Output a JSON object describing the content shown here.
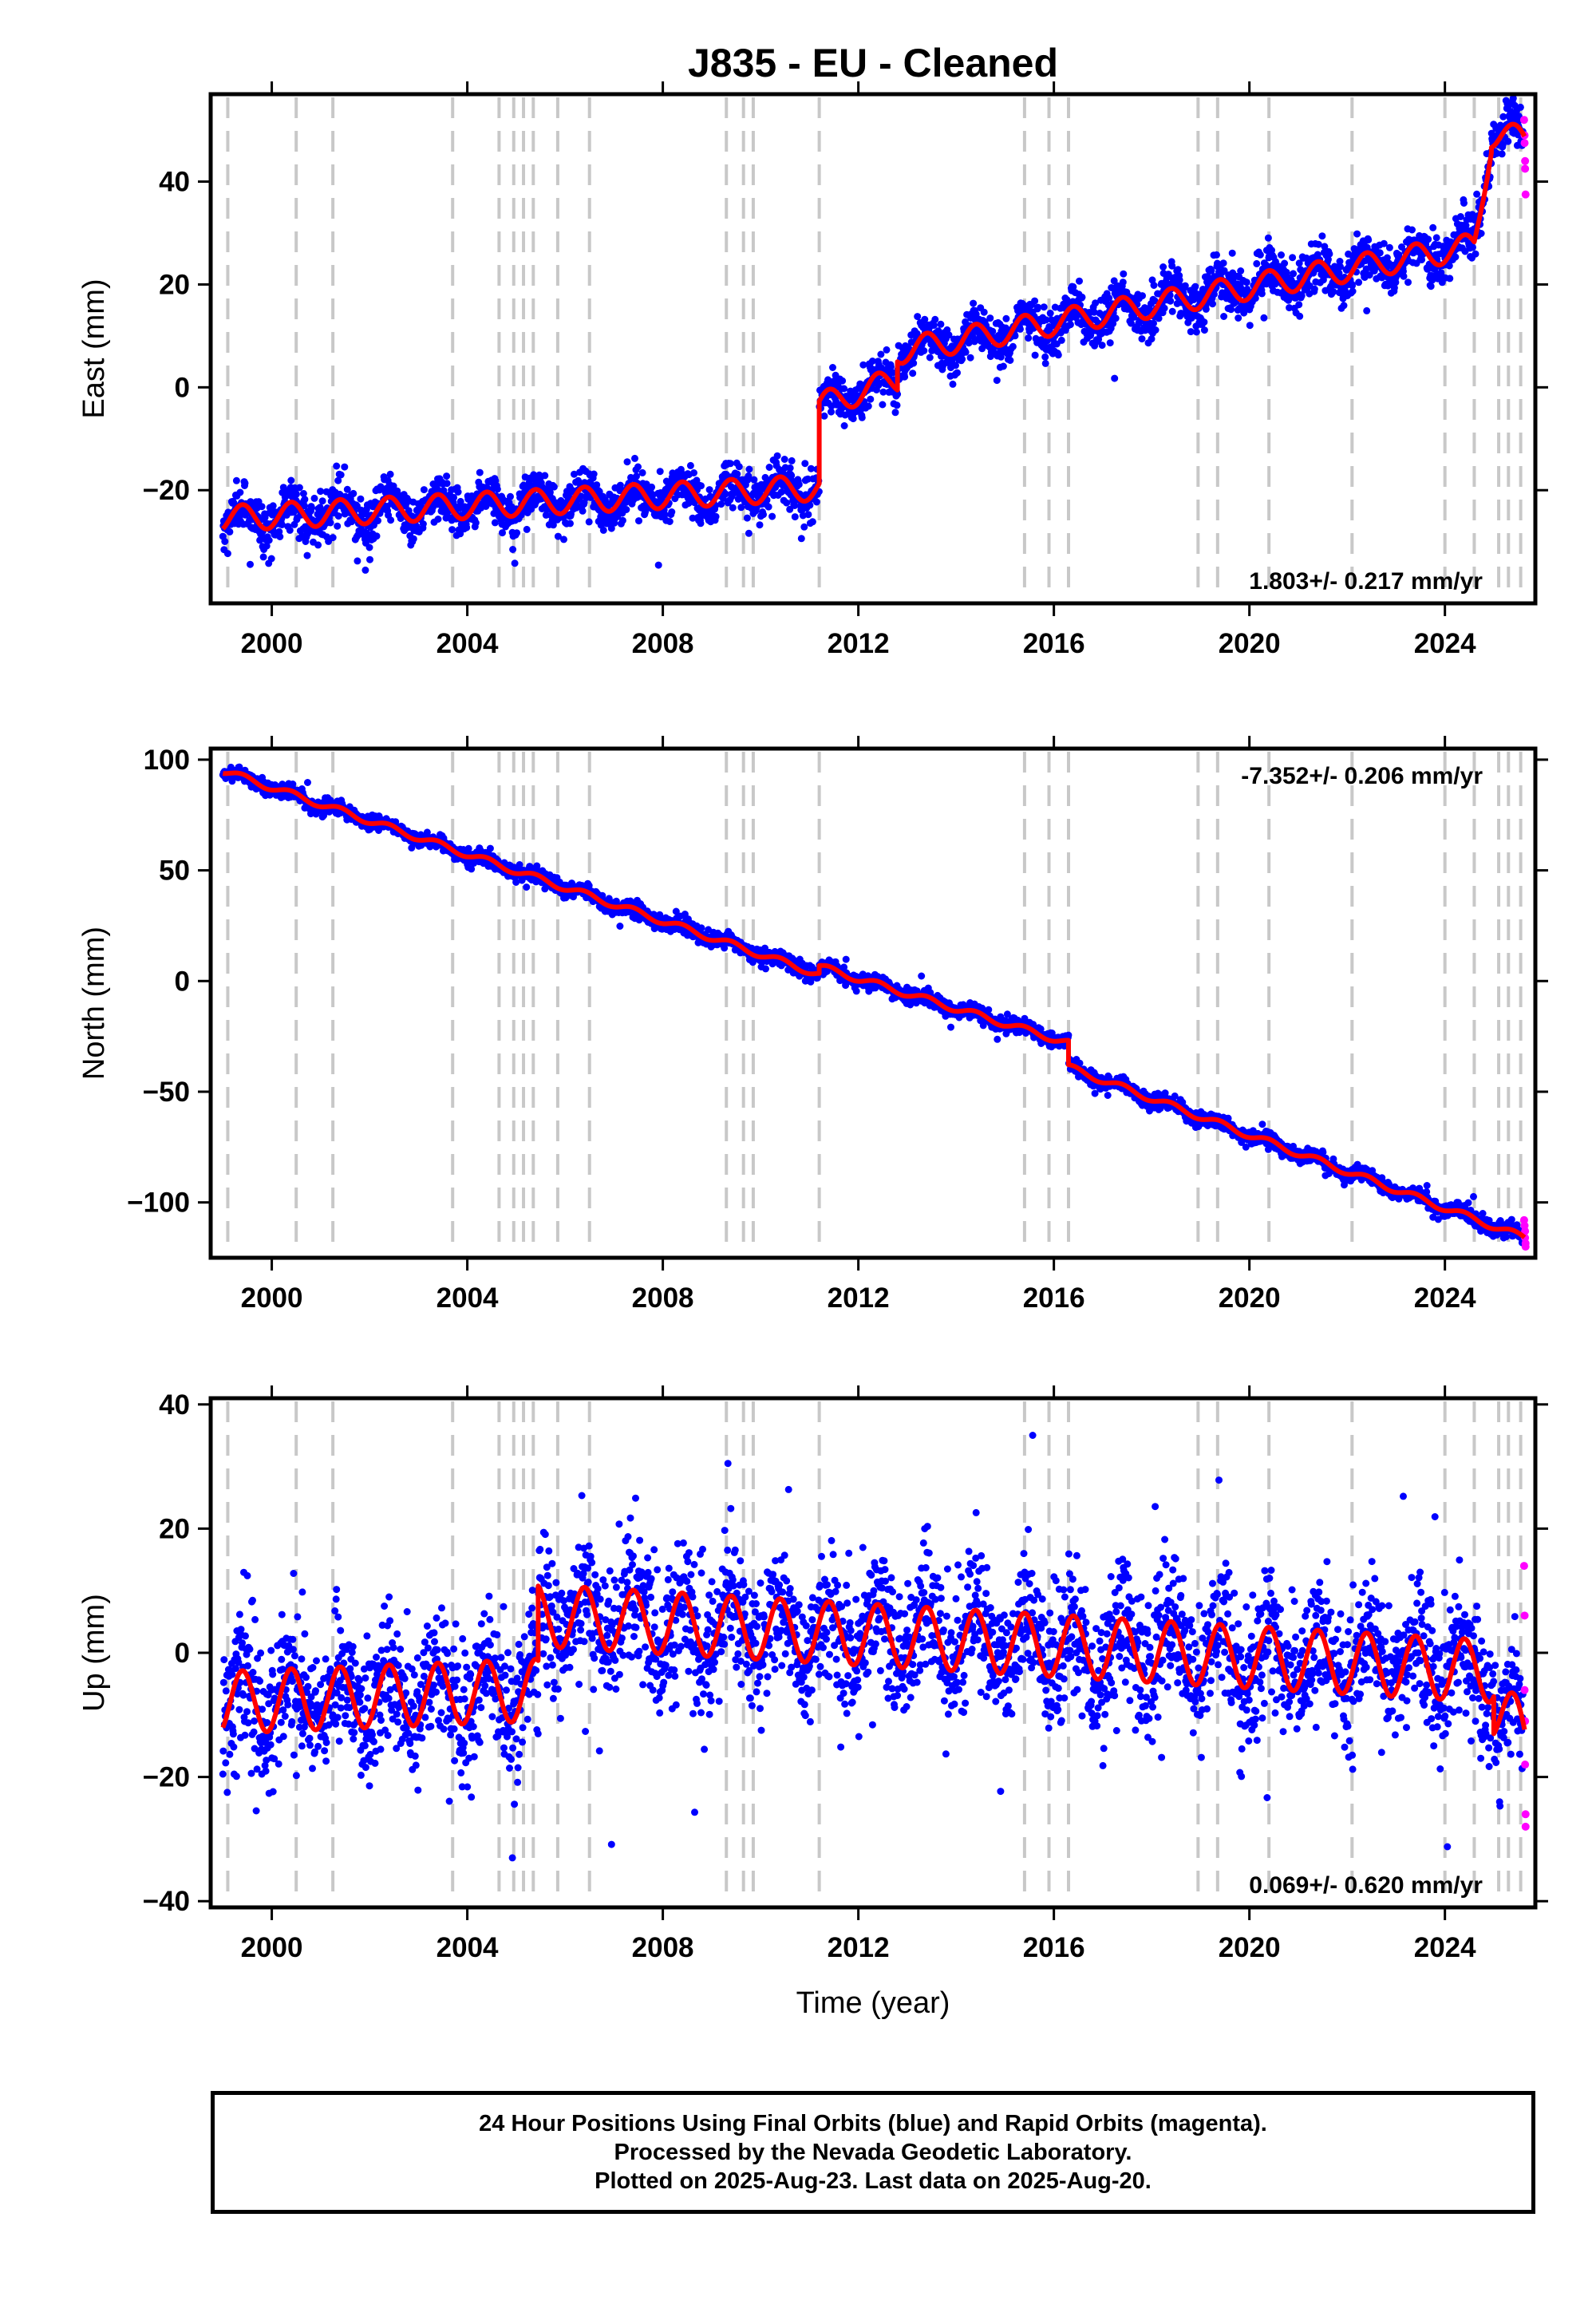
{
  "title": "J835  - EU - Cleaned",
  "xlabel": "Time (year)",
  "footer": {
    "line1": "24 Hour Positions Using Final Orbits (blue) and Rapid Orbits (magenta).",
    "line2": "Processed by the Nevada Geodetic Laboratory.",
    "line3": "Plotted on 2025-Aug-23. Last data on 2025-Aug-20."
  },
  "colors": {
    "final_orbits": "#0000ff",
    "rapid_orbits": "#ff00ff",
    "model_fit": "#ff0000",
    "event_lines": "#c8c8c8"
  },
  "chart_data": {
    "type": "scatter",
    "xlim": [
      1998.75,
      2025.85
    ],
    "xticks": [
      2000,
      2004,
      2008,
      2012,
      2016,
      2020,
      2024
    ],
    "xtick_labels": [
      "2000",
      "2004",
      "2008",
      "2012",
      "2016",
      "2020",
      "2024"
    ],
    "event_lines": [
      1999.1,
      2000.5,
      2001.25,
      2003.7,
      2004.65,
      2004.95,
      2005.15,
      2005.35,
      2005.85,
      2006.5,
      2009.3,
      2009.65,
      2009.85,
      2011.2,
      2015.4,
      2015.9,
      2016.3,
      2018.95,
      2019.35,
      2020.4,
      2022.1,
      2024.0,
      2024.6,
      2025.1,
      2025.3,
      2025.55
    ],
    "panels": [
      {
        "component": "east",
        "ylabel": "East (mm)",
        "ylim": [
          -42,
          57
        ],
        "yticks": [
          -20,
          0,
          20,
          40
        ],
        "ytick_labels": [
          "−20",
          "0",
          "20",
          "40"
        ],
        "rate_text": "1.803+/- 0.217 mm/yr",
        "rate_position": "bottom-right",
        "noise_mm": 2.2,
        "fit": {
          "annual_amplitude_mm": 2.5,
          "segments": [
            {
              "x": [
                1999.0,
                2011.2
              ],
              "y": [
                -25.5,
                -19.5
              ]
            },
            {
              "x": [
                2011.2,
                2012.8
              ],
              "y": [
                -3.5,
                1.5
              ]
            },
            {
              "x": [
                2012.8,
                2024.6
              ],
              "y": [
                7.0,
                27.5
              ]
            },
            {
              "x": [
                2024.6,
                2024.95
              ],
              "y": [
                27.5,
                48.0
              ]
            },
            {
              "x": [
                2024.95,
                2025.63
              ],
              "y": [
                49.0,
                48.5
              ]
            }
          ]
        },
        "rapid_points": [
          {
            "x": 2025.62,
            "y": 52.0
          },
          {
            "x": 2025.63,
            "y": 49.0
          },
          {
            "x": 2025.63,
            "y": 47.5
          },
          {
            "x": 2025.64,
            "y": 44.0
          },
          {
            "x": 2025.64,
            "y": 42.5
          },
          {
            "x": 2025.65,
            "y": 37.5
          }
        ]
      },
      {
        "component": "north",
        "ylabel": "North (mm)",
        "ylim": [
          -125,
          105
        ],
        "yticks": [
          -100,
          -50,
          0,
          50,
          100
        ],
        "ytick_labels": [
          "−100",
          "−50",
          "0",
          "50",
          "100"
        ],
        "rate_text": "-7.352+/- 0.206 mm/yr",
        "rate_position": "top-right",
        "noise_mm": 1.6,
        "fit": {
          "annual_amplitude_mm": 1.5,
          "segments": [
            {
              "x": [
                1999.0,
                2011.2
              ],
              "y": [
                95.0,
                3.0
              ]
            },
            {
              "x": [
                2011.2,
                2016.3
              ],
              "y": [
                6.5,
                -28.0
              ]
            },
            {
              "x": [
                2016.3,
                2025.63
              ],
              "y": [
                -39.0,
                -116.0
              ]
            }
          ]
        },
        "rapid_points": [
          {
            "x": 2025.62,
            "y": -108.0
          },
          {
            "x": 2025.63,
            "y": -110.5
          },
          {
            "x": 2025.64,
            "y": -113.0
          },
          {
            "x": 2025.64,
            "y": -116.0
          },
          {
            "x": 2025.65,
            "y": -118.5
          },
          {
            "x": 2025.65,
            "y": -120.0
          }
        ]
      },
      {
        "component": "up",
        "ylabel": "Up (mm)",
        "ylim": [
          -41,
          41
        ],
        "yticks": [
          -40,
          -20,
          0,
          20,
          40
        ],
        "ytick_labels": [
          "−40",
          "−20",
          "0",
          "20",
          "40"
        ],
        "rate_text": "0.069+/- 0.620 mm/yr",
        "rate_position": "bottom-right",
        "noise_mm": 5.5,
        "fit": {
          "annual_amplitude_mm": 5.0,
          "segments": [
            {
              "x": [
                1999.0,
                2005.45
              ],
              "y": [
                -8.0,
                -6.0
              ]
            },
            {
              "x": [
                2005.45,
                2025.0
              ],
              "y": [
                6.0,
                -3.0
              ]
            },
            {
              "x": [
                2025.0,
                2025.63
              ],
              "y": [
                -9.0,
                -13.0
              ]
            }
          ]
        },
        "rapid_points": [
          {
            "x": 2025.62,
            "y": 14.0
          },
          {
            "x": 2025.63,
            "y": 6.0
          },
          {
            "x": 2025.63,
            "y": -6.0
          },
          {
            "x": 2025.64,
            "y": -11.0
          },
          {
            "x": 2025.64,
            "y": -18.0
          },
          {
            "x": 2025.65,
            "y": -26.0
          },
          {
            "x": 2025.65,
            "y": -28.0
          }
        ]
      }
    ]
  }
}
